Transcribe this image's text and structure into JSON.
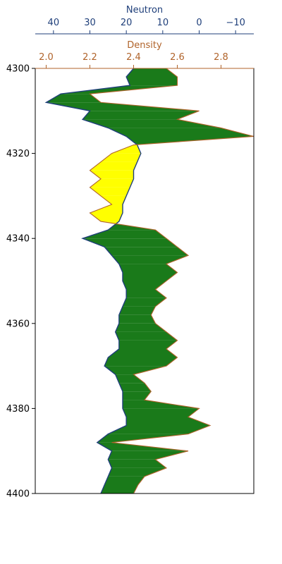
{
  "chart_data": {
    "type": "area",
    "y_axis": {
      "label": "",
      "range": [
        4300,
        4400
      ],
      "inverted": true,
      "ticks": [
        4300,
        4320,
        4340,
        4360,
        4380,
        4400
      ]
    },
    "neutron_axis": {
      "label": "Neutron",
      "range": [
        45,
        -15
      ],
      "inverted": true,
      "ticks": [
        40,
        30,
        20,
        10,
        0,
        -10
      ],
      "tick_labels": [
        "40",
        "30",
        "20",
        "10",
        "0",
        "−10"
      ],
      "color": "#1f3f7a"
    },
    "density_axis": {
      "label": "Density",
      "range": [
        1.95,
        2.95
      ],
      "ticks": [
        2.0,
        2.2,
        2.4,
        2.6,
        2.8
      ],
      "tick_labels": [
        "2.0",
        "2.2",
        "2.4",
        "2.6",
        "2.8"
      ],
      "color": "#b0632a"
    },
    "fill_colors": {
      "density_right_of_neutron": "#1a7a1a",
      "density_left_of_neutron": "#ffff00"
    },
    "series": [
      {
        "name": "Neutron",
        "color": "#1f3f7a",
        "depth": [
          4300,
          4302,
          4304,
          4306,
          4308,
          4310,
          4312,
          4314,
          4316,
          4318,
          4320,
          4322,
          4324,
          4326,
          4328,
          4330,
          4332,
          4334,
          4336,
          4338,
          4340,
          4342,
          4344,
          4346,
          4348,
          4350,
          4352,
          4354,
          4356,
          4358,
          4360,
          4362,
          4364,
          4366,
          4368,
          4370,
          4372,
          4374,
          4376,
          4378,
          4380,
          4382,
          4384,
          4386,
          4388,
          4390,
          4392,
          4394,
          4396,
          4398,
          4400
        ],
        "values": [
          18,
          20,
          19,
          38,
          42,
          30,
          32,
          25,
          20,
          17,
          16,
          17,
          18,
          18,
          19,
          20,
          21,
          21,
          22,
          25,
          32,
          26,
          24,
          22,
          21,
          21,
          20,
          20,
          21,
          22,
          22,
          23,
          22,
          22,
          25,
          26,
          23,
          22,
          21,
          21,
          21,
          20,
          20,
          25,
          28,
          24,
          25,
          24,
          25,
          26,
          27
        ]
      },
      {
        "name": "Density",
        "color": "#b0632a",
        "depth": [
          4300,
          4302,
          4304,
          4306,
          4308,
          4310,
          4312,
          4314,
          4316,
          4318,
          4320,
          4322,
          4324,
          4326,
          4328,
          4330,
          4332,
          4334,
          4336,
          4338,
          4340,
          4342,
          4344,
          4346,
          4348,
          4350,
          4352,
          4354,
          4356,
          4358,
          4360,
          4362,
          4364,
          4366,
          4368,
          4370,
          4372,
          4374,
          4376,
          4378,
          4380,
          4382,
          4384,
          4386,
          4388,
          4390,
          4392,
          4394,
          4396,
          4398,
          4400
        ],
        "values": [
          2.55,
          2.6,
          2.6,
          2.2,
          2.25,
          2.7,
          2.6,
          2.8,
          2.95,
          2.4,
          2.3,
          2.25,
          2.2,
          2.25,
          2.2,
          2.25,
          2.3,
          2.2,
          2.25,
          2.5,
          2.55,
          2.6,
          2.65,
          2.55,
          2.6,
          2.55,
          2.5,
          2.55,
          2.5,
          2.48,
          2.5,
          2.55,
          2.6,
          2.55,
          2.6,
          2.55,
          2.4,
          2.45,
          2.48,
          2.45,
          2.7,
          2.65,
          2.75,
          2.65,
          2.3,
          2.65,
          2.5,
          2.55,
          2.45,
          2.42,
          2.4
        ]
      }
    ]
  }
}
